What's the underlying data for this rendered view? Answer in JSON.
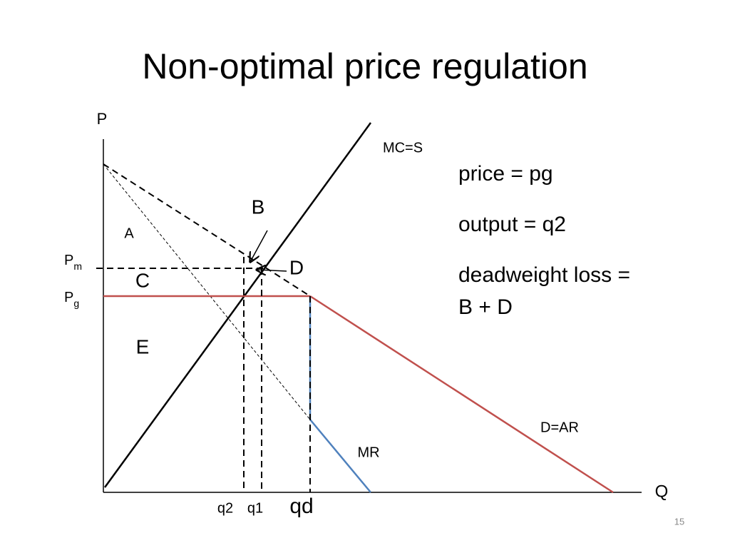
{
  "title": "Non-optimal price regulation",
  "axes": {
    "y_label": "P",
    "x_label": "Q"
  },
  "price_labels": [
    {
      "base": "P",
      "sub": "m"
    },
    {
      "base": "P",
      "sub": "g"
    }
  ],
  "quantity_labels": [
    "q2",
    "q1",
    "qd"
  ],
  "curve_labels": {
    "supply": "MC=S",
    "demand": "D=AR",
    "marginal_revenue": "MR"
  },
  "area_labels": [
    "A",
    "B",
    "C",
    "D",
    "E"
  ],
  "notes": [
    "price = pg",
    "output = q2",
    "deadweight loss =",
    "B + D"
  ],
  "page_number": "15"
}
